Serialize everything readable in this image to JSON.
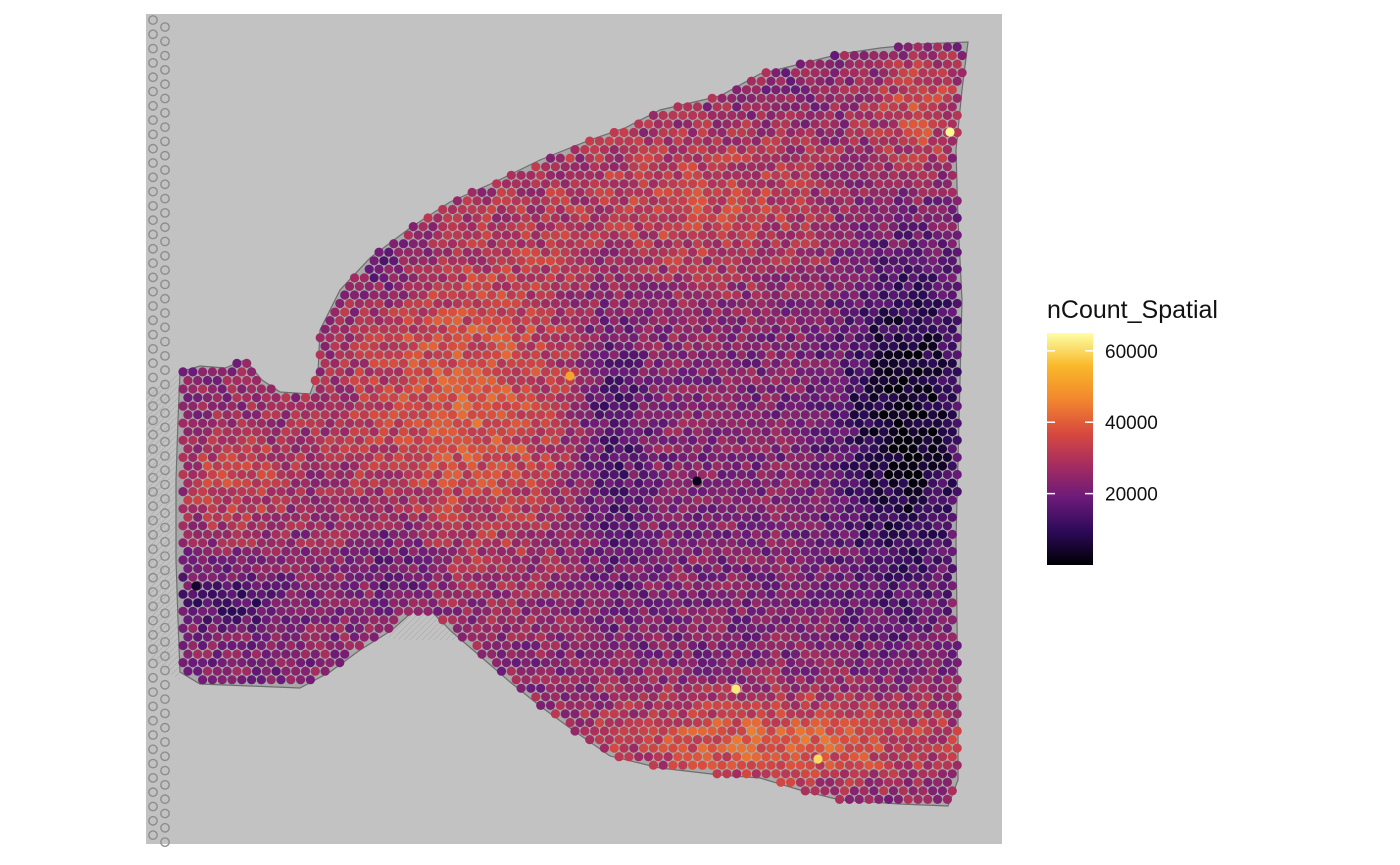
{
  "chart_data": {
    "type": "scatter",
    "title": "",
    "xlabel": "",
    "ylabel": "",
    "background": "tissue-image",
    "point_color_variable": "nCount_Spatial",
    "legend": {
      "title": "nCount_Spatial",
      "position": "right",
      "range": [
        0,
        65000
      ],
      "breaks": [
        20000,
        40000,
        60000
      ],
      "break_labels": [
        "20000",
        "40000",
        "60000"
      ],
      "palette": [
        "#000004",
        "#2b0a57",
        "#6a1a7a",
        "#a52c60",
        "#d94a3e",
        "#f2872e",
        "#f9b82a",
        "#fcffa4"
      ]
    },
    "spot_grid": {
      "spacing_units": 1,
      "rows": 53,
      "columns": 88
    },
    "hotspots": [
      {
        "region": "upper-right-edge",
        "value": 64000
      },
      {
        "region": "bottom-center",
        "value": 62000
      },
      {
        "region": "bottom-right",
        "value": 60000
      },
      {
        "region": "center-left",
        "value": 52000
      }
    ],
    "coldspots": [
      {
        "region": "right-middle",
        "value": 3000
      },
      {
        "region": "lower-left",
        "value": 4000
      }
    ]
  }
}
